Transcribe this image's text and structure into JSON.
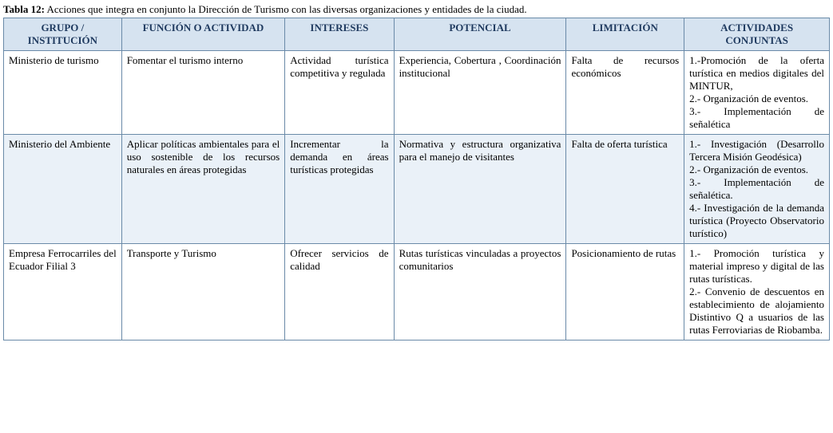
{
  "caption_label": "Tabla 12:",
  "caption_text": " Acciones que integra en conjunto la Dirección de Turismo con las diversas organizaciones y entidades de la ciudad.",
  "columns": [
    {
      "key": "grupo",
      "label": "GRUPO / INSTITUCIÓN",
      "width": "13%"
    },
    {
      "key": "funcion",
      "label": "FUNCIÓN O ACTIVIDAD",
      "width": "18%"
    },
    {
      "key": "intereses",
      "label": "INTERESES",
      "width": "12%"
    },
    {
      "key": "potencial",
      "label": "POTENCIAL",
      "width": "19%"
    },
    {
      "key": "limitacion",
      "label": "LIMITACIÓN",
      "width": "13%"
    },
    {
      "key": "actividades",
      "label": "ACTIVIDADES CONJUNTAS",
      "width": "16%"
    }
  ],
  "rows": [
    {
      "zebra": false,
      "grupo": "Ministerio de turismo",
      "funcion": "Fomentar el turismo interno",
      "intereses": "Actividad turística competitiva y regulada",
      "potencial": "Experiencia, Cobertura , Coordinación institucional",
      "limitacion": "Falta de recursos económicos",
      "actividades": "1.-Promoción de la oferta turística en medios digitales del MINTUR,\n 2.- Organización de eventos.\n3.- Implementación de señalética"
    },
    {
      "zebra": true,
      "grupo": "Ministerio del Ambiente",
      "funcion": "Aplicar políticas ambientales para el uso sostenible de los recursos naturales en áreas protegidas",
      "intereses": "Incrementar la demanda en áreas turísticas protegidas",
      "potencial": "Normativa y estructura organizativa para el manejo de visitantes",
      "limitacion": "Falta de oferta turística",
      "actividades": "1.- Investigación (Desarrollo Tercera Misión Geodésica)\n2.- Organización de eventos.\n3.- Implementación de señalética.\n4.- Investigación de la demanda turística (Proyecto Observatorio turístico)"
    },
    {
      "zebra": false,
      "grupo": "Empresa Ferrocarriles del Ecuador Filial 3",
      "funcion": "Transporte y Turismo",
      "intereses": "Ofrecer servicios de calidad",
      "potencial": "Rutas turísticas vinculadas a proyectos comunitarios",
      "limitacion": "Posicionamiento de rutas",
      "actividades": "1.- Promoción turística y material impreso y digital de las rutas turísticas.\n2.- Convenio de descuentos en establecimiento de alojamiento Distintivo Q a usuarios de las rutas Ferroviarias de Riobamba."
    }
  ]
}
